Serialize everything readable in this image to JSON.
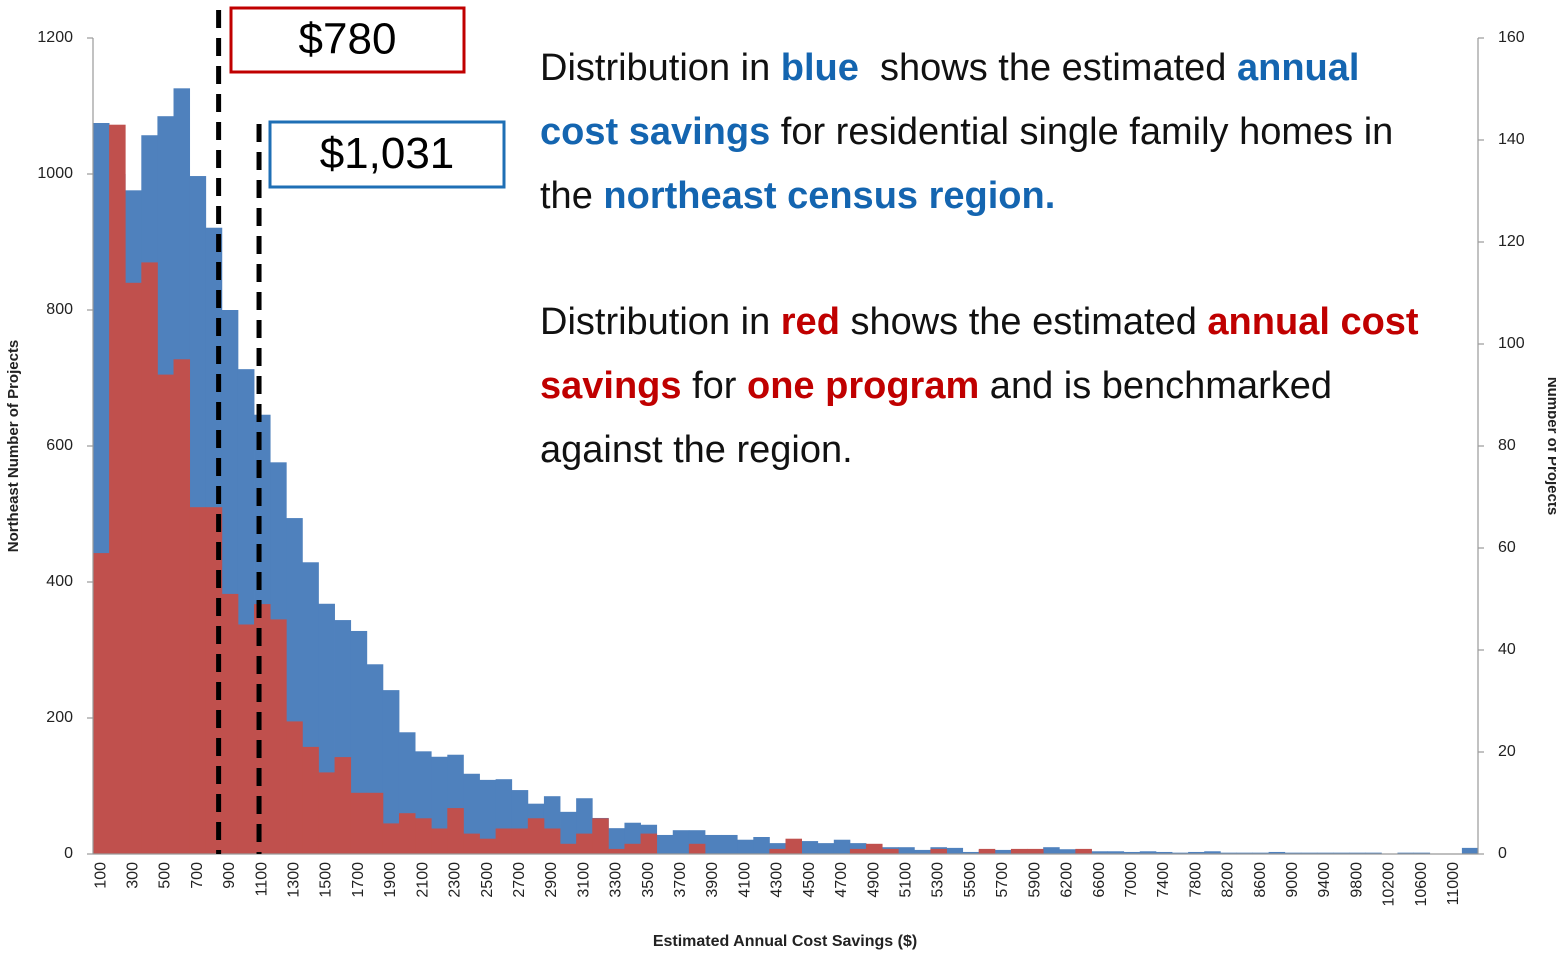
{
  "chart_data": {
    "type": "bar",
    "x_label": "Estimated Annual Cost Savings ($)",
    "y_label": "Northeast Number of Projects",
    "y2_label": "Number of Projects",
    "categories": [
      "100",
      null,
      "300",
      null,
      "500",
      null,
      "700",
      null,
      "900",
      null,
      "1100",
      null,
      "1300",
      null,
      "1500",
      null,
      "1700",
      null,
      "1900",
      null,
      "2100",
      null,
      "2300",
      null,
      "2500",
      null,
      "2700",
      null,
      "2900",
      null,
      "3100",
      null,
      "3300",
      null,
      "3500",
      null,
      "3700",
      null,
      "3900",
      null,
      "4100",
      null,
      "4300",
      null,
      "4500",
      null,
      "4700",
      null,
      "4900",
      null,
      "5100",
      null,
      "5300",
      null,
      "5500",
      null,
      "5700",
      null,
      "5900",
      null,
      "6200",
      null,
      "6600",
      null,
      "7000",
      null,
      "7400",
      null,
      "7800",
      null,
      "8200",
      null,
      "8600",
      null,
      "9000",
      null,
      "9400",
      null,
      "9800",
      null,
      "10200",
      null,
      "10600",
      null,
      "11000",
      null
    ],
    "series": [
      {
        "color": "#4f81bd",
        "axis": "y",
        "values": [
          1075,
          1000,
          976,
          1057,
          1085,
          1126,
          997,
          921,
          800,
          713,
          646,
          576,
          494,
          429,
          368,
          344,
          328,
          279,
          241,
          179,
          151,
          143,
          146,
          118,
          109,
          110,
          94,
          74,
          85,
          62,
          82,
          53,
          38,
          46,
          43,
          28,
          35,
          35,
          28,
          28,
          21,
          25,
          16,
          21,
          19,
          16,
          21,
          16,
          13,
          10,
          10,
          6,
          10,
          9,
          3,
          6,
          6,
          6,
          7,
          10,
          7,
          7,
          4,
          4,
          3,
          4,
          3,
          2,
          3,
          4,
          2,
          2,
          2,
          3,
          2,
          2,
          2,
          2,
          2,
          2,
          0,
          2,
          2,
          0,
          0,
          9
        ]
      },
      {
        "color": "#c0504d",
        "axis": "y2",
        "values": [
          59,
          143,
          112,
          116,
          94,
          97,
          68,
          68,
          51,
          45,
          49,
          46,
          26,
          21,
          16,
          19,
          12,
          12,
          6,
          8,
          7,
          5,
          9,
          4,
          3,
          5,
          5,
          7,
          5,
          2,
          4,
          7,
          1,
          2,
          4,
          0,
          0,
          2,
          0,
          0,
          0,
          0,
          1,
          3,
          0,
          0,
          0,
          1,
          2,
          1,
          0,
          0,
          1,
          0,
          0,
          1,
          0,
          1,
          1,
          0,
          0,
          1,
          0,
          0,
          0,
          0,
          0,
          0,
          0,
          0,
          0,
          0,
          0,
          0,
          0,
          0,
          0,
          0,
          0,
          0,
          0,
          0,
          0,
          0,
          0,
          0
        ]
      }
    ],
    "ylim": [
      0,
      1200
    ],
    "yticks": [
      0,
      200,
      400,
      600,
      800,
      1000,
      1200
    ],
    "y2lim": [
      0,
      160
    ],
    "y2ticks": [
      0,
      20,
      40,
      60,
      80,
      100,
      120,
      140,
      160
    ],
    "annotations": [
      {
        "value": 780,
        "label": "$780",
        "color": "#c00000"
      },
      {
        "value": 1031,
        "label": "$1,031",
        "color": "#1f6fb5"
      }
    ],
    "text_blocks": [
      [
        {
          "text": "Distribution in ",
          "style": "plain"
        },
        {
          "text": "blue",
          "style": "blue"
        },
        {
          "text": "  shows the estimated ",
          "style": "plain"
        },
        {
          "text": "annual cost savings",
          "style": "blue"
        },
        {
          "text": " for residential single family homes in the ",
          "style": "plain"
        },
        {
          "text": "northeast census region.",
          "style": "blue"
        }
      ],
      [
        {
          "text": "Distribution in ",
          "style": "plain"
        },
        {
          "text": "red",
          "style": "red"
        },
        {
          "text": " shows the estimated ",
          "style": "plain"
        },
        {
          "text": "annual cost savings",
          "style": "red"
        },
        {
          "text": " for ",
          "style": "plain"
        },
        {
          "text": "one program",
          "style": "red"
        },
        {
          "text": " and is benchmarked against the region.",
          "style": "plain"
        }
      ]
    ]
  }
}
